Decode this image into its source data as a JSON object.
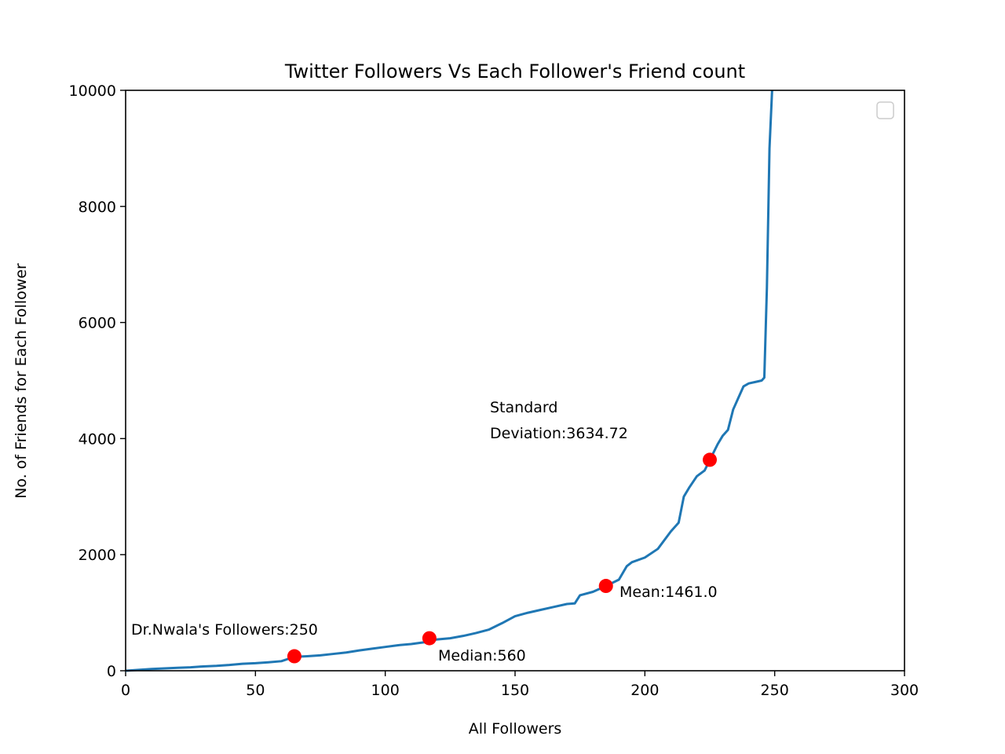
{
  "chart_data": {
    "type": "line",
    "title": "Twitter Followers Vs Each Follower's Friend count",
    "xlabel": "All Followers",
    "ylabel": "No. of Friends for Each Follower",
    "xlim": [
      0,
      300
    ],
    "ylim": [
      0,
      10000
    ],
    "x_ticks": [
      0,
      50,
      100,
      150,
      200,
      250,
      300
    ],
    "y_ticks": [
      0,
      2000,
      4000,
      6000,
      8000,
      10000
    ],
    "grid": false,
    "legend": "top-right (empty)",
    "colors": {
      "line": "#1f77b4",
      "markers": "#ff0000"
    },
    "series": [
      {
        "x": [
          0,
          5,
          10,
          15,
          20,
          25,
          30,
          35,
          40,
          45,
          50,
          55,
          60,
          65,
          70,
          75,
          80,
          85,
          90,
          95,
          100,
          105,
          110,
          115,
          118,
          120,
          125,
          130,
          135,
          140,
          145,
          150,
          155,
          160,
          165,
          170,
          173,
          175,
          180,
          185,
          190,
          193,
          195,
          200,
          205,
          210,
          213,
          215,
          217,
          220,
          223,
          225,
          228,
          230,
          232,
          234,
          236,
          238,
          240,
          243,
          245,
          246,
          247,
          248,
          249
        ],
        "y": [
          0,
          15,
          30,
          40,
          50,
          60,
          75,
          85,
          100,
          120,
          130,
          145,
          165,
          240,
          250,
          265,
          290,
          315,
          350,
          380,
          410,
          440,
          460,
          490,
          520,
          540,
          560,
          600,
          650,
          710,
          820,
          940,
          1000,
          1050,
          1100,
          1150,
          1160,
          1300,
          1360,
          1460,
          1570,
          1800,
          1870,
          1950,
          2100,
          2400,
          2550,
          3000,
          3150,
          3350,
          3450,
          3630,
          3900,
          4050,
          4150,
          4500,
          4700,
          4900,
          4950,
          4980,
          5000,
          5050,
          6600,
          9000,
          10000
        ]
      }
    ],
    "points": [
      {
        "x": 65,
        "y": 250,
        "label": "Dr.Nwala's Followers:250"
      },
      {
        "x": 117,
        "y": 560,
        "label": "Median:560"
      },
      {
        "x": 185,
        "y": 1461,
        "label": "Mean:1461.0"
      },
      {
        "x": 225,
        "y": 3634.72,
        "label_line1": "Standard",
        "label_line2": "Deviation:3634.72"
      }
    ]
  }
}
